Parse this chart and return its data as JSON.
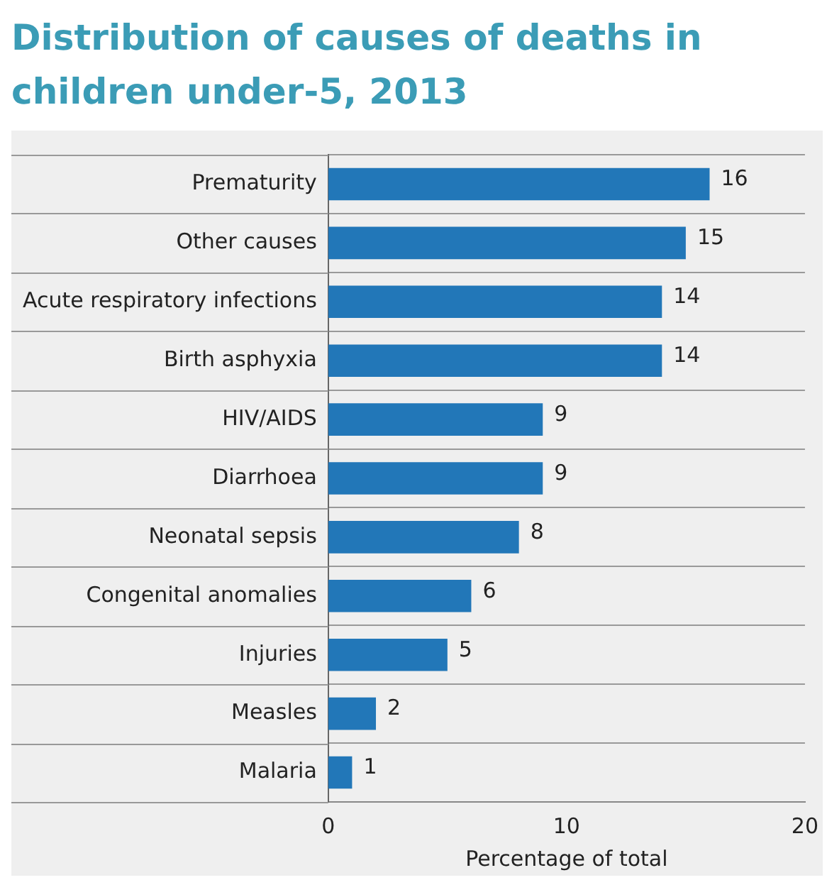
{
  "chart_data": {
    "type": "bar",
    "orientation": "horizontal",
    "title": "Distribution of causes of deaths in children under-5, 2013",
    "categories": [
      "Prematurity",
      "Other causes",
      "Acute respiratory infections",
      "Birth asphyxia",
      "HIV/AIDS",
      "Diarrhoea",
      "Neonatal sepsis",
      "Congenital anomalies",
      "Injuries",
      "Measles",
      "Malaria"
    ],
    "values": [
      16,
      15,
      14,
      14,
      9,
      9,
      8,
      6,
      5,
      2,
      1
    ],
    "color": "#2277b8",
    "xlim": [
      0,
      20
    ],
    "xticks": [
      0,
      10,
      20
    ],
    "xlabel": "Percentage of total",
    "grid": "y",
    "data_labels": true
  }
}
